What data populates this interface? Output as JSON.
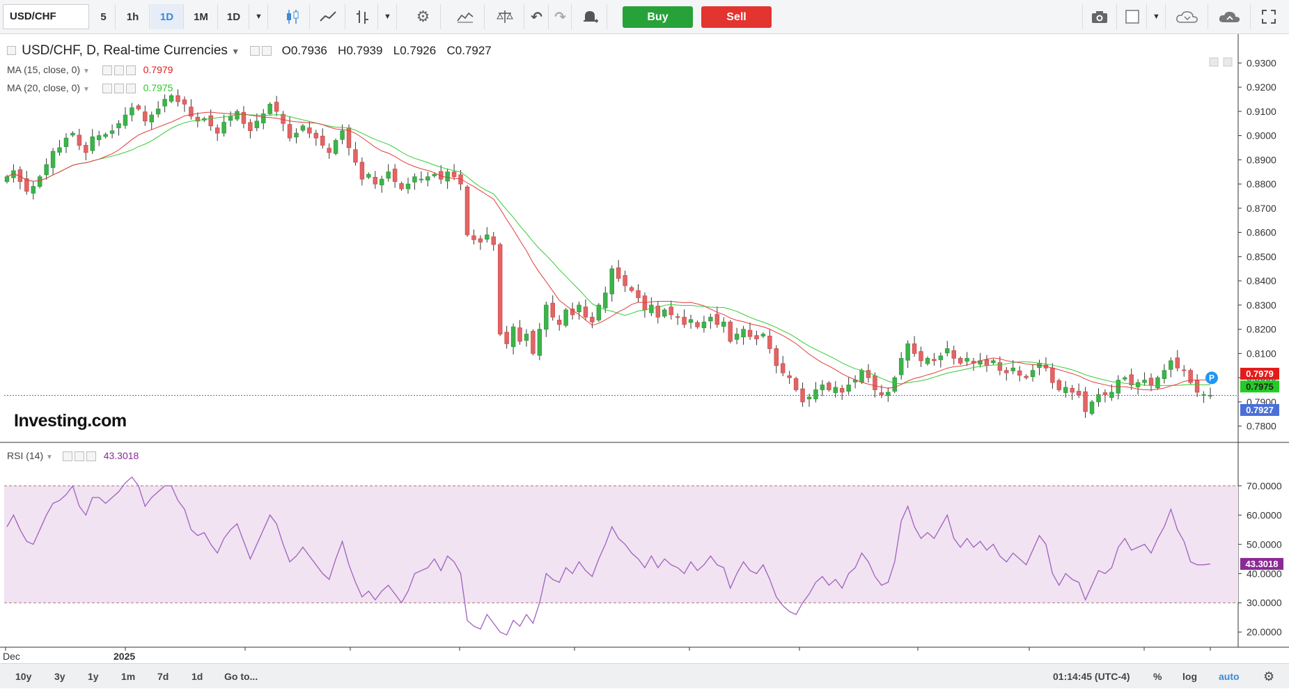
{
  "toolbar": {
    "symbol": "USD/CHF",
    "intervals": [
      "5",
      "1h",
      "1D",
      "1M",
      "1D"
    ],
    "selected_interval": "1D",
    "buy_label": "Buy",
    "sell_label": "Sell",
    "icons": [
      "candles-icon",
      "line-chart-icon",
      "bar-chart-icon",
      "dropdown-icon",
      "gear-icon",
      "indicators-icon",
      "balance-icon",
      "undo-icon",
      "redo-icon",
      "alert-bell-icon",
      "camera-icon",
      "layout-icon",
      "cloud-download-icon",
      "cloud-upload-icon",
      "fullscreen-icon"
    ]
  },
  "header": {
    "title": "USD/CHF, D, Real-time Currencies",
    "open": "0.7936",
    "high": "0.7939",
    "low": "0.7926",
    "close": "0.7927"
  },
  "indicators": {
    "ma15": {
      "label": "MA (15, close, 0)",
      "value": "0.7979",
      "color": "#e33b3b"
    },
    "ma20": {
      "label": "MA (20, close, 0)",
      "value": "0.7975",
      "color": "#33cc33"
    },
    "rsi": {
      "label": "RSI (14)",
      "value": "43.3018",
      "color": "#a060c0"
    }
  },
  "price_badges": {
    "ma15": "0.7979",
    "ma20": "0.7975",
    "last": "0.7927",
    "marker": "P"
  },
  "watermark": "Investing.com",
  "bottombar": {
    "ranges": [
      "10y",
      "3y",
      "1y",
      "1m",
      "7d",
      "1d",
      "Go to..."
    ],
    "clock": "01:14:45 (UTC-4)",
    "percent": "%",
    "log": "log",
    "auto": "auto"
  },
  "chart_data": {
    "type": "candlestick",
    "price_axis": {
      "ticks": [
        "0.9300",
        "0.9200",
        "0.9100",
        "0.9000",
        "0.8900",
        "0.8800",
        "0.8700",
        "0.8600",
        "0.8500",
        "0.8400",
        "0.8300",
        "0.8200",
        "0.8100",
        "0.8000",
        "0.7900",
        "0.7800"
      ],
      "range": [
        0.775,
        0.935
      ]
    },
    "rsi_axis": {
      "ticks": [
        "70.0000",
        "60.0000",
        "50.0000",
        "40.0000",
        "30.0000",
        "20.0000"
      ],
      "range": [
        16,
        82
      ],
      "band": [
        30,
        70
      ]
    },
    "x_ticks": [
      "Dec",
      "2025"
    ],
    "closes": [
      0.883,
      0.8855,
      0.881,
      0.877,
      0.879,
      0.883,
      0.888,
      0.8935,
      0.895,
      0.899,
      0.901,
      0.896,
      0.893,
      0.8995,
      0.9,
      0.9005,
      0.902,
      0.905,
      0.9085,
      0.9115,
      0.911,
      0.906,
      0.9085,
      0.911,
      0.915,
      0.9165,
      0.914,
      0.913,
      0.908,
      0.906,
      0.907,
      0.904,
      0.901,
      0.9055,
      0.908,
      0.91,
      0.905,
      0.902,
      0.906,
      0.909,
      0.913,
      0.91,
      0.905,
      0.899,
      0.901,
      0.904,
      0.901,
      0.899,
      0.896,
      0.893,
      0.898,
      0.902,
      0.895,
      0.889,
      0.882,
      0.884,
      0.88,
      0.882,
      0.885,
      0.881,
      0.878,
      0.88,
      0.883,
      0.882,
      0.883,
      0.884,
      0.882,
      0.885,
      0.883,
      0.88,
      0.859,
      0.857,
      0.856,
      0.859,
      0.855,
      0.818,
      0.814,
      0.821,
      0.815,
      0.818,
      0.81,
      0.82,
      0.83,
      0.825,
      0.822,
      0.828,
      0.826,
      0.83,
      0.825,
      0.823,
      0.83,
      0.835,
      0.845,
      0.841,
      0.838,
      0.836,
      0.833,
      0.828,
      0.83,
      0.825,
      0.828,
      0.826,
      0.825,
      0.822,
      0.824,
      0.821,
      0.823,
      0.825,
      0.822,
      0.823,
      0.815,
      0.818,
      0.82,
      0.817,
      0.816,
      0.818,
      0.812,
      0.805,
      0.802,
      0.8,
      0.795,
      0.79,
      0.792,
      0.795,
      0.797,
      0.795,
      0.796,
      0.794,
      0.797,
      0.799,
      0.803,
      0.8,
      0.795,
      0.793,
      0.794,
      0.8,
      0.808,
      0.814,
      0.81,
      0.807,
      0.808,
      0.807,
      0.809,
      0.812,
      0.808,
      0.806,
      0.808,
      0.806,
      0.807,
      0.805,
      0.807,
      0.803,
      0.802,
      0.804,
      0.801,
      0.8,
      0.803,
      0.806,
      0.804,
      0.798,
      0.795,
      0.796,
      0.794,
      0.793,
      0.786,
      0.79,
      0.793,
      0.793,
      0.794,
      0.799,
      0.8,
      0.797,
      0.798,
      0.799,
      0.797,
      0.8,
      0.803,
      0.807,
      0.804,
      0.803,
      0.798,
      0.794,
      0.793,
      0.7927
    ],
    "rsi": [
      56,
      60,
      55,
      51,
      50,
      55,
      60,
      64,
      65,
      67,
      70,
      63,
      60,
      66,
      66,
      64,
      66,
      68,
      71,
      73,
      70,
      63,
      66,
      68,
      70,
      70,
      65,
      62,
      55,
      53,
      54,
      50,
      47,
      52,
      55,
      57,
      51,
      45,
      50,
      55,
      60,
      57,
      50,
      44,
      46,
      49,
      46,
      43,
      40,
      38,
      45,
      51,
      43,
      37,
      32,
      34,
      31,
      34,
      36,
      33,
      30,
      34,
      40,
      41,
      42,
      45,
      41,
      46,
      44,
      40,
      24,
      22,
      21,
      26,
      23,
      20,
      19,
      24,
      22,
      26,
      23,
      30,
      40,
      38,
      37,
      42,
      40,
      44,
      41,
      39,
      45,
      50,
      56,
      52,
      50,
      47,
      45,
      42,
      46,
      42,
      45,
      43,
      42,
      40,
      44,
      41,
      43,
      46,
      43,
      42,
      35,
      40,
      44,
      41,
      40,
      43,
      38,
      32,
      29,
      27,
      26,
      30,
      33,
      37,
      39,
      36,
      38,
      35,
      40,
      42,
      47,
      44,
      39,
      36,
      37,
      44,
      58,
      63,
      56,
      52,
      54,
      52,
      56,
      60,
      52,
      49,
      52,
      49,
      51,
      48,
      50,
      46,
      44,
      47,
      45,
      43,
      48,
      53,
      50,
      40,
      36,
      40,
      38,
      37,
      31,
      36,
      41,
      40,
      42,
      49,
      52,
      48,
      49,
      50,
      47,
      52,
      56,
      62,
      55,
      51,
      44,
      43,
      43,
      43.3
    ]
  }
}
